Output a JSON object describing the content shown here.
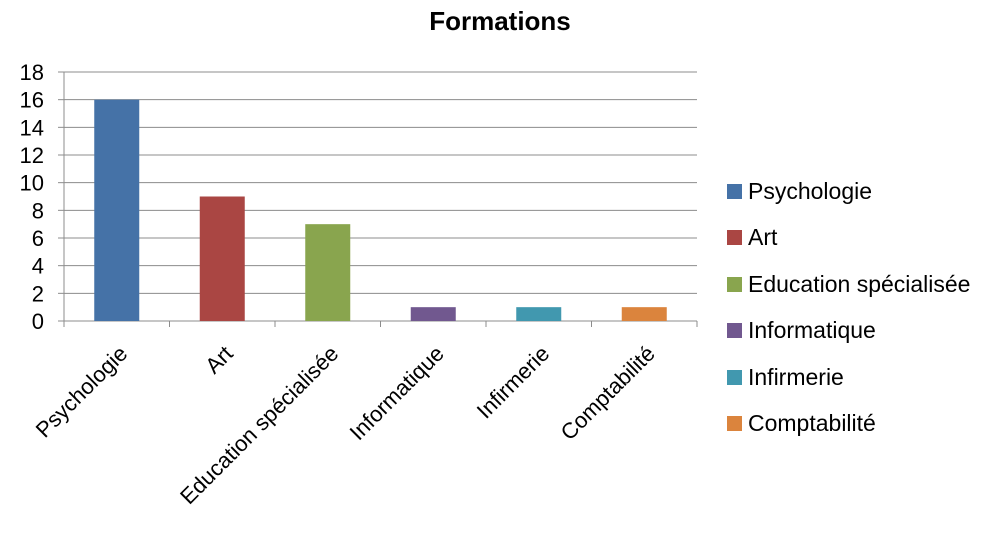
{
  "chart_data": {
    "type": "bar",
    "title": "Formations",
    "categories": [
      "Psychologie",
      "Art",
      "Education spécialisée",
      "Informatique",
      "Infirmerie",
      "Comptabilité"
    ],
    "values": [
      16,
      9,
      7,
      1,
      1,
      1
    ],
    "colors": [
      "#4572A7",
      "#AA4643",
      "#89A54E",
      "#71588F",
      "#4198AF",
      "#DB843D"
    ],
    "ylim": [
      0,
      18
    ],
    "yticks": [
      "0",
      "2",
      "4",
      "6",
      "8",
      "10",
      "12",
      "14",
      "16",
      "18"
    ],
    "grid": true,
    "legend_position": "right"
  }
}
